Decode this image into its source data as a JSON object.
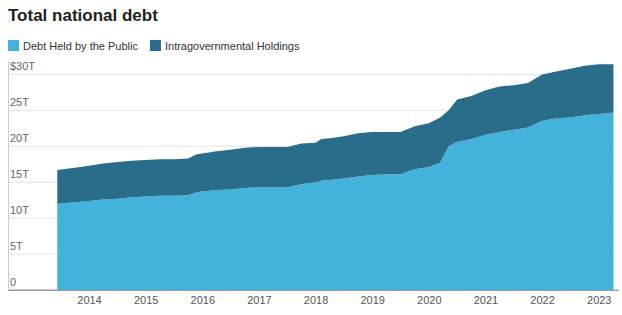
{
  "chart_data": {
    "type": "area",
    "title": "Total national debt",
    "stacked": true,
    "grid": true,
    "legend": "top-left",
    "x": [
      2013.44,
      2013.75,
      2014.0,
      2014.25,
      2014.5,
      2014.75,
      2015.0,
      2015.25,
      2015.5,
      2015.75,
      2015.9,
      2016.0,
      2016.25,
      2016.5,
      2016.75,
      2017.0,
      2017.25,
      2017.5,
      2017.75,
      2018.0,
      2018.1,
      2018.25,
      2018.5,
      2018.75,
      2019.0,
      2019.25,
      2019.5,
      2019.75,
      2020.0,
      2020.2,
      2020.35,
      2020.5,
      2020.75,
      2021.0,
      2021.25,
      2021.5,
      2021.75,
      2022.0,
      2022.25,
      2022.5,
      2022.75,
      2023.0,
      2023.26
    ],
    "series": [
      {
        "name": "Debt Held by the Public",
        "color": "#44b3dc",
        "values": [
          12.0,
          12.2,
          12.4,
          12.6,
          12.7,
          12.9,
          13.0,
          13.1,
          13.1,
          13.2,
          13.6,
          13.7,
          13.9,
          14.0,
          14.2,
          14.3,
          14.3,
          14.3,
          14.7,
          15.0,
          15.2,
          15.3,
          15.5,
          15.8,
          16.0,
          16.1,
          16.1,
          16.8,
          17.1,
          17.7,
          20.0,
          20.6,
          21.0,
          21.6,
          22.0,
          22.3,
          22.6,
          23.5,
          23.9,
          24.0,
          24.3,
          24.5,
          24.7
        ]
      },
      {
        "name": "Intragovernmental Holdings",
        "color": "#2a6d8a",
        "values": [
          4.7,
          4.8,
          4.9,
          5.0,
          5.1,
          5.1,
          5.1,
          5.1,
          5.1,
          5.1,
          5.3,
          5.3,
          5.4,
          5.5,
          5.6,
          5.6,
          5.6,
          5.6,
          5.7,
          5.5,
          5.8,
          5.8,
          5.9,
          6.0,
          6.0,
          5.9,
          5.9,
          6.0,
          6.1,
          6.3,
          5.0,
          5.9,
          6.0,
          6.2,
          6.3,
          6.2,
          6.2,
          6.5,
          6.5,
          6.8,
          6.9,
          6.9,
          6.7
        ]
      }
    ],
    "xlim": [
      2012.57,
      2023.34
    ],
    "xticks": [
      2014,
      2015,
      2016,
      2017,
      2018,
      2019,
      2020,
      2021,
      2022,
      2023
    ],
    "ylim": [
      0,
      32
    ],
    "yticks": [
      0,
      {
        "value": 5,
        "label": "5T"
      },
      {
        "value": 10,
        "label": "10T"
      },
      {
        "value": 15,
        "label": "15T"
      },
      {
        "value": 20,
        "label": "20T"
      },
      {
        "value": 25,
        "label": "25T"
      },
      {
        "value": 30,
        "label": "$30T"
      }
    ]
  }
}
